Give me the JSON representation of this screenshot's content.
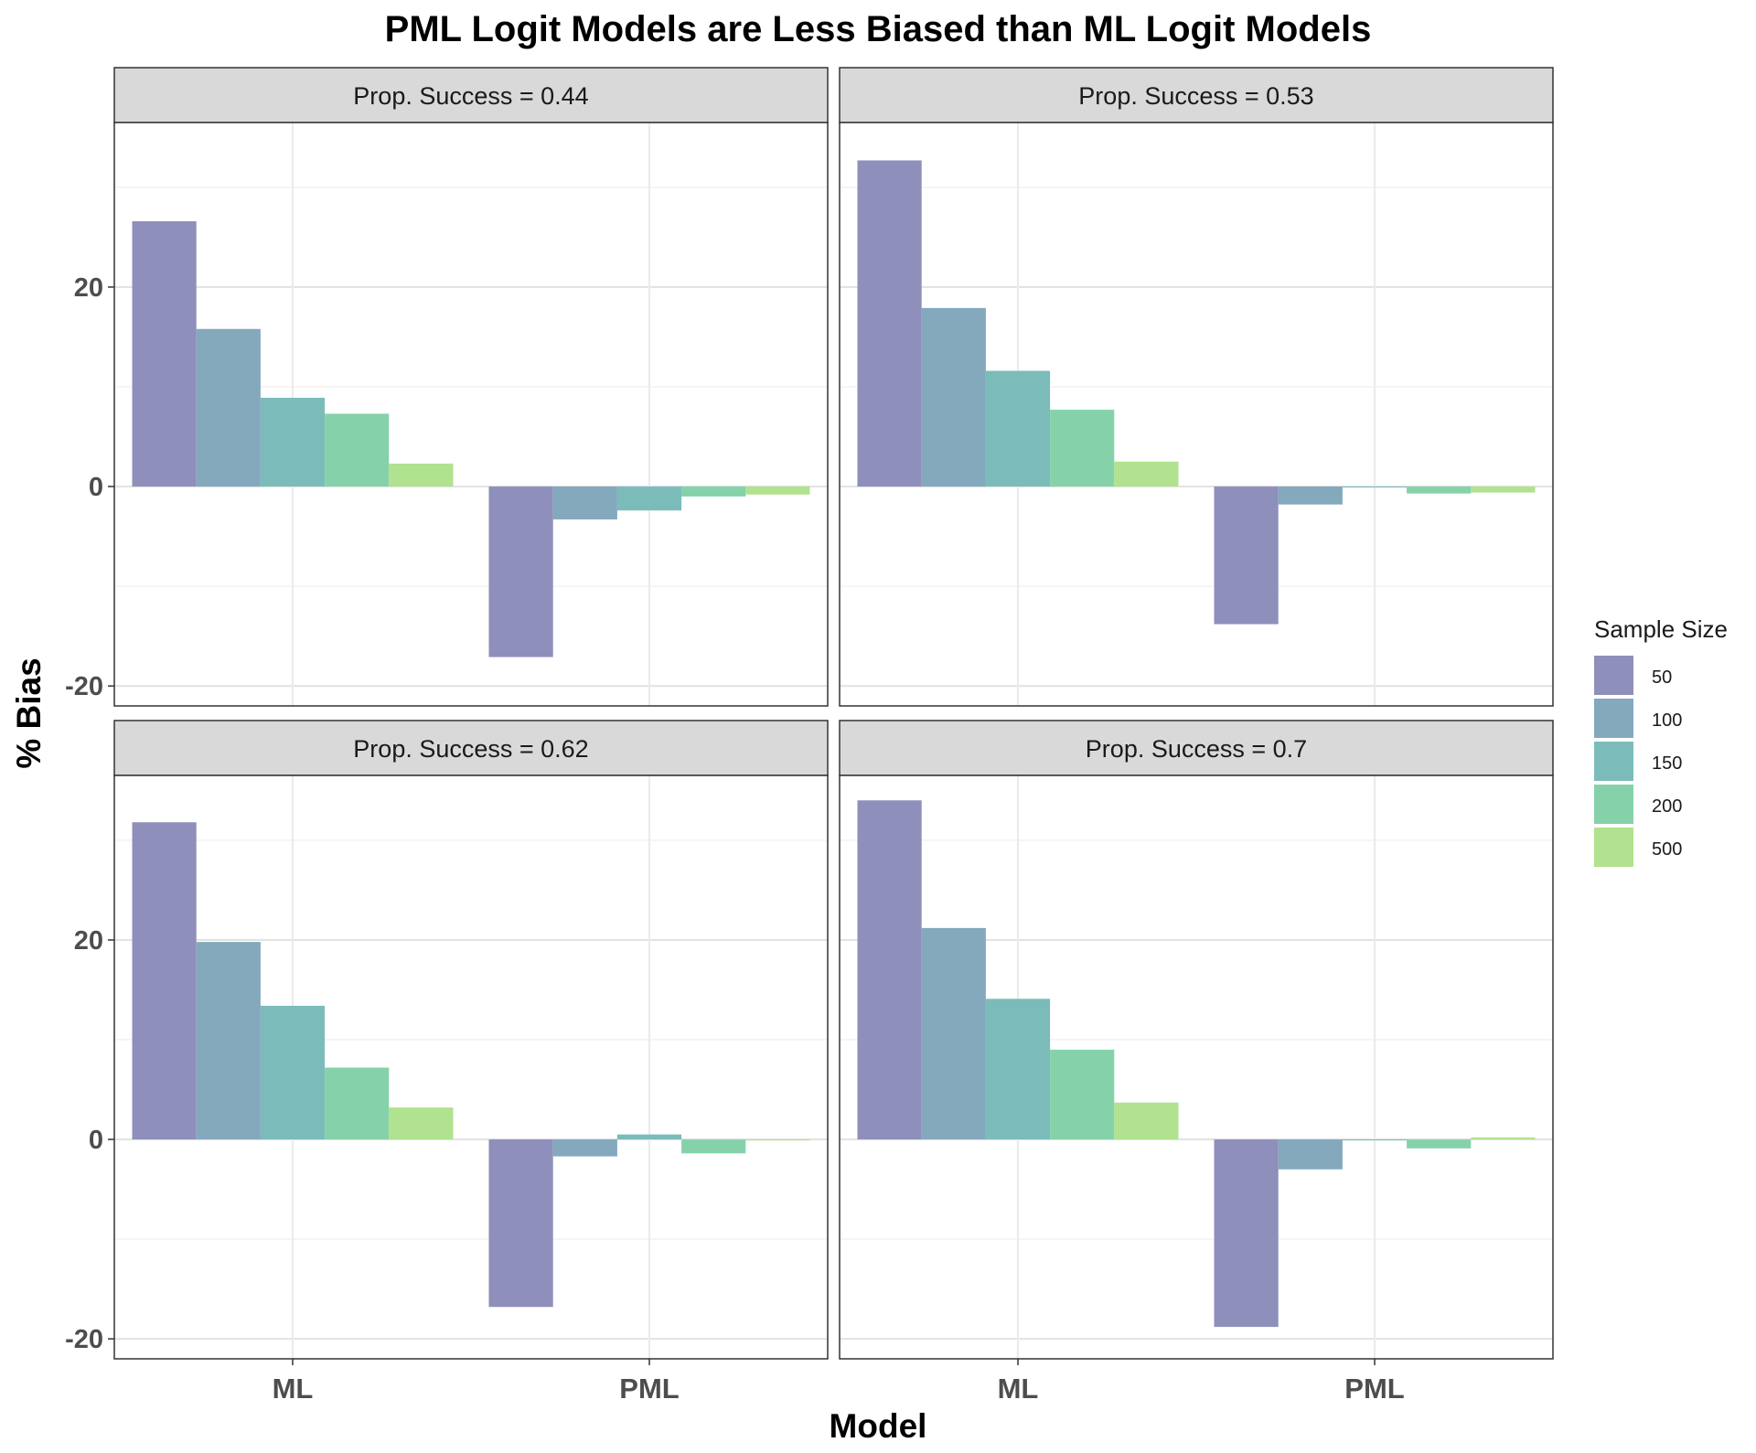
{
  "chart_data": {
    "type": "bar",
    "title": "PML Logit Models are Less Biased than ML Logit Models",
    "xlabel": "Model",
    "ylabel": "% Bias",
    "ylim": [
      -22,
      36.5
    ],
    "yticks": [
      -20,
      0,
      20
    ],
    "ytick_labels": [
      "-20",
      "0",
      "20"
    ],
    "categories": [
      "ML",
      "PML"
    ],
    "legend": {
      "title": "Sample Size",
      "placement": "right",
      "entries": [
        "50",
        "100",
        "150",
        "200",
        "500"
      ]
    },
    "series_colors": [
      "#8e8fba",
      "#84a9bd",
      "#7bbcbb",
      "#85d2aa",
      "#b1e28f"
    ],
    "grid": true,
    "panels": [
      {
        "strip": "Prop. Success = 0.44",
        "series": [
          {
            "name": "50",
            "values": [
              26.6,
              -17.1
            ]
          },
          {
            "name": "100",
            "values": [
              15.8,
              -3.3
            ]
          },
          {
            "name": "150",
            "values": [
              8.9,
              -2.4
            ]
          },
          {
            "name": "200",
            "values": [
              7.3,
              -1.0
            ]
          },
          {
            "name": "500",
            "values": [
              2.3,
              -0.8
            ]
          }
        ]
      },
      {
        "strip": "Prop. Success = 0.53",
        "series": [
          {
            "name": "50",
            "values": [
              32.7,
              -13.8
            ]
          },
          {
            "name": "100",
            "values": [
              17.9,
              -1.8
            ]
          },
          {
            "name": "150",
            "values": [
              11.6,
              -0.1
            ]
          },
          {
            "name": "200",
            "values": [
              7.7,
              -0.7
            ]
          },
          {
            "name": "500",
            "values": [
              2.5,
              -0.6
            ]
          }
        ]
      },
      {
        "strip": "Prop. Success = 0.62",
        "series": [
          {
            "name": "50",
            "values": [
              31.8,
              -16.8
            ]
          },
          {
            "name": "100",
            "values": [
              19.8,
              -1.7
            ]
          },
          {
            "name": "150",
            "values": [
              13.4,
              0.5
            ]
          },
          {
            "name": "200",
            "values": [
              7.2,
              -1.4
            ]
          },
          {
            "name": "500",
            "values": [
              3.2,
              -0.1
            ]
          }
        ]
      },
      {
        "strip": "Prop. Success = 0.7",
        "series": [
          {
            "name": "50",
            "values": [
              34.0,
              -18.8
            ]
          },
          {
            "name": "100",
            "values": [
              21.2,
              -3.0
            ]
          },
          {
            "name": "150",
            "values": [
              14.1,
              -0.1
            ]
          },
          {
            "name": "200",
            "values": [
              9.0,
              -0.9
            ]
          },
          {
            "name": "500",
            "values": [
              3.7,
              0.2
            ]
          }
        ]
      }
    ]
  }
}
